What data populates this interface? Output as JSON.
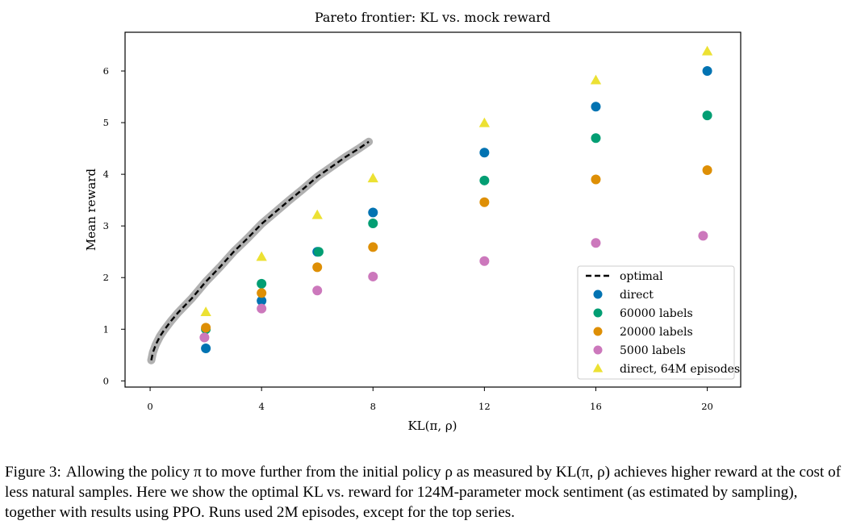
{
  "chart_data": {
    "type": "scatter",
    "title": "Pareto frontier: KL vs. mock reward",
    "xlabel": "KL(π, ρ)",
    "ylabel": "Mean reward",
    "xlim": [
      -0.9,
      21.2
    ],
    "ylim": [
      -0.12,
      6.75
    ],
    "xticks": [
      0,
      4,
      8,
      12,
      16,
      20
    ],
    "yticks": [
      0,
      1,
      2,
      3,
      4,
      5,
      6
    ],
    "grid": false,
    "legend_position": "bottom-right",
    "optimal": {
      "name": "optimal",
      "color": "#000000",
      "band_color": "#b0b0b0",
      "x": [
        0.04,
        0.1,
        0.2,
        0.35,
        0.5,
        0.75,
        1.0,
        1.5,
        2.0,
        2.5,
        3.0,
        3.5,
        4.0,
        4.5,
        5.0,
        5.5,
        6.0,
        6.5,
        7.0,
        7.5,
        7.85
      ],
      "y": [
        0.4,
        0.55,
        0.7,
        0.86,
        0.98,
        1.16,
        1.32,
        1.6,
        1.92,
        2.2,
        2.5,
        2.76,
        3.04,
        3.27,
        3.5,
        3.72,
        3.95,
        4.14,
        4.33,
        4.5,
        4.63
      ]
    },
    "series": [
      {
        "name": "direct",
        "marker": "circle",
        "color": "#0173b2",
        "x": [
          2,
          4,
          6,
          8,
          12,
          16,
          20
        ],
        "y": [
          0.63,
          1.55,
          2.5,
          3.26,
          4.42,
          5.31,
          6.0
        ]
      },
      {
        "name": "60000 labels",
        "marker": "circle",
        "color": "#029e73",
        "x": [
          2,
          4,
          6.05,
          8,
          12,
          16,
          20
        ],
        "y": [
          1.0,
          1.88,
          2.5,
          3.05,
          3.88,
          4.7,
          5.14
        ]
      },
      {
        "name": "20000 labels",
        "marker": "circle",
        "color": "#de8f05",
        "x": [
          2,
          4,
          6,
          8,
          12,
          16,
          20
        ],
        "y": [
          1.03,
          1.7,
          2.2,
          2.59,
          3.46,
          3.9,
          4.08
        ]
      },
      {
        "name": "5000 labels",
        "marker": "circle",
        "color": "#cc78bc",
        "x": [
          1.95,
          4,
          6,
          8,
          12,
          16,
          19.85
        ],
        "y": [
          0.84,
          1.4,
          1.75,
          2.02,
          2.32,
          2.67,
          2.81
        ]
      },
      {
        "name": "direct, 64M episodes",
        "marker": "triangle",
        "color": "#ece133",
        "x": [
          2,
          4,
          6,
          8,
          12,
          16,
          20
        ],
        "y": [
          1.33,
          2.4,
          3.21,
          3.92,
          4.99,
          5.82,
          6.38
        ]
      }
    ]
  },
  "caption": {
    "label": "Figure 3:",
    "text": "Allowing the policy π to move further from the initial policy ρ as measured by KL(π, ρ) achieves higher reward at the cost of less natural samples. Here we show the optimal KL vs. reward for 124M-parameter mock sentiment (as estimated by sampling), together with results using PPO. Runs used 2M episodes, except for the top series."
  }
}
